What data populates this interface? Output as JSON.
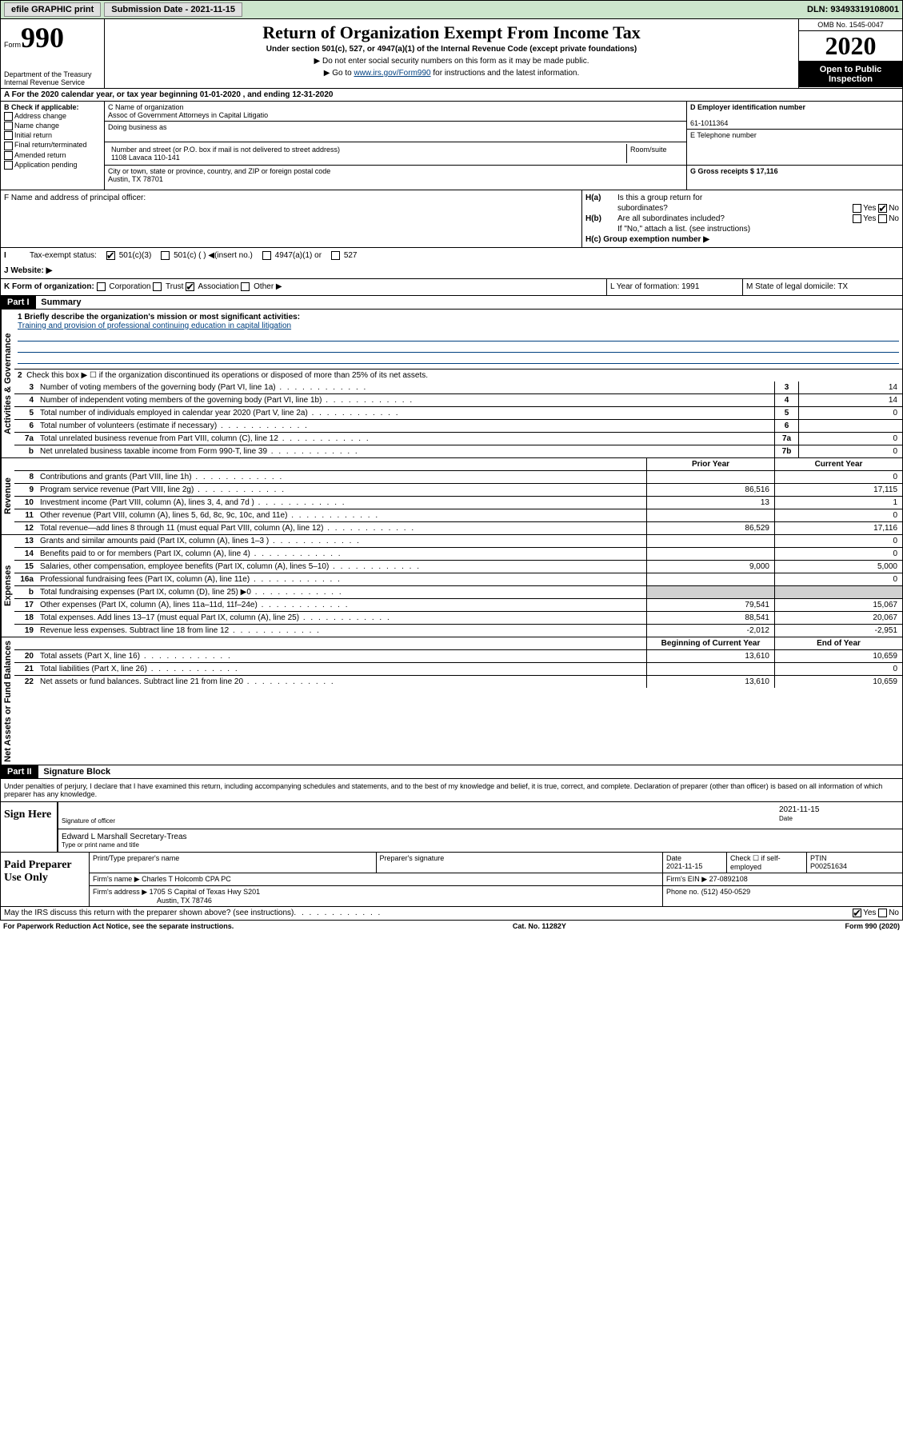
{
  "topbar": {
    "efile": "efile GRAPHIC print",
    "submission_label": "Submission Date - 2021-11-15",
    "dln": "DLN: 93493319108001"
  },
  "header": {
    "form_prefix": "Form",
    "form_number": "990",
    "dept": "Department of the Treasury",
    "irs": "Internal Revenue Service",
    "title": "Return of Organization Exempt From Income Tax",
    "subtitle": "Under section 501(c), 527, or 4947(a)(1) of the Internal Revenue Code (except private foundations)",
    "line1": "▶ Do not enter social security numbers on this form as it may be made public.",
    "line2_pre": "▶ Go to ",
    "line2_link": "www.irs.gov/Form990",
    "line2_post": " for instructions and the latest information.",
    "omb": "OMB No. 1545-0047",
    "year": "2020",
    "open_public": "Open to Public Inspection"
  },
  "row_a": "A For the 2020 calendar year, or tax year beginning 01-01-2020   , and ending 12-31-2020",
  "section_b": {
    "label": "B Check if applicable:",
    "opts": [
      "Address change",
      "Name change",
      "Initial return",
      "Final return/terminated",
      "Amended return",
      "Application pending"
    ]
  },
  "section_c": {
    "name_label": "C Name of organization",
    "name": "Assoc of Government Attorneys in Capital Litigatio",
    "dba_label": "Doing business as",
    "addr_label": "Number and street (or P.O. box if mail is not delivered to street address)",
    "room_label": "Room/suite",
    "addr": "1108 Lavaca 110-141",
    "city_label": "City or town, state or province, country, and ZIP or foreign postal code",
    "city": "Austin, TX  78701"
  },
  "section_d": {
    "ein_label": "D Employer identification number",
    "ein": "61-1011364",
    "phone_label": "E Telephone number",
    "gross_label": "G Gross receipts $ 17,116"
  },
  "section_f": {
    "label": "F  Name and address of principal officer:"
  },
  "section_h": {
    "ha": "H(a)  Is this a group return for subordinates?",
    "hb": "H(b)  Are all subordinates included?",
    "hb_note": "If \"No,\" attach a list. (see instructions)",
    "hc": "H(c)  Group exemption number ▶",
    "yes": "Yes",
    "no": "No"
  },
  "row_i": {
    "label": "Tax-exempt status:",
    "opt1": "501(c)(3)",
    "opt2": "501(c) (  ) ◀(insert no.)",
    "opt3": "4947(a)(1) or",
    "opt4": "527"
  },
  "row_j": {
    "label": "J    Website: ▶"
  },
  "row_k": {
    "k": "K Form of organization:",
    "k_opts": [
      "Corporation",
      "Trust",
      "Association",
      "Other ▶"
    ],
    "l_label": "L Year of formation: 1991",
    "m_label": "M State of legal domicile: TX"
  },
  "part1": {
    "header": "Part I",
    "title": "Summary",
    "side_gov": "Activities & Governance",
    "side_rev": "Revenue",
    "side_exp": "Expenses",
    "side_net": "Net Assets or Fund Balances",
    "line1_label": "1  Briefly describe the organization's mission or most significant activities:",
    "line1_text": "Training and provision of professional continuing education in capital litigation",
    "line2": "Check this box ▶ ☐  if the organization discontinued its operations or disposed of more than 25% of its net assets.",
    "lines": [
      {
        "n": "3",
        "t": "Number of voting members of the governing body (Part VI, line 1a)",
        "c": "3",
        "v": "14"
      },
      {
        "n": "4",
        "t": "Number of independent voting members of the governing body (Part VI, line 1b)",
        "c": "4",
        "v": "14"
      },
      {
        "n": "5",
        "t": "Total number of individuals employed in calendar year 2020 (Part V, line 2a)",
        "c": "5",
        "v": "0"
      },
      {
        "n": "6",
        "t": "Total number of volunteers (estimate if necessary)",
        "c": "6",
        "v": ""
      },
      {
        "n": "7a",
        "t": "Total unrelated business revenue from Part VIII, column (C), line 12",
        "c": "7a",
        "v": "0"
      },
      {
        "n": "b",
        "t": "Net unrelated business taxable income from Form 990-T, line 39",
        "c": "7b",
        "v": "0"
      }
    ],
    "prior_year": "Prior Year",
    "current_year": "Current Year",
    "rev_lines": [
      {
        "n": "8",
        "t": "Contributions and grants (Part VIII, line 1h)",
        "p": "",
        "c": "0"
      },
      {
        "n": "9",
        "t": "Program service revenue (Part VIII, line 2g)",
        "p": "86,516",
        "c": "17,115"
      },
      {
        "n": "10",
        "t": "Investment income (Part VIII, column (A), lines 3, 4, and 7d )",
        "p": "13",
        "c": "1"
      },
      {
        "n": "11",
        "t": "Other revenue (Part VIII, column (A), lines 5, 6d, 8c, 9c, 10c, and 11e)",
        "p": "",
        "c": "0"
      },
      {
        "n": "12",
        "t": "Total revenue—add lines 8 through 11 (must equal Part VIII, column (A), line 12)",
        "p": "86,529",
        "c": "17,116"
      }
    ],
    "exp_lines": [
      {
        "n": "13",
        "t": "Grants and similar amounts paid (Part IX, column (A), lines 1–3 )",
        "p": "",
        "c": "0"
      },
      {
        "n": "14",
        "t": "Benefits paid to or for members (Part IX, column (A), line 4)",
        "p": "",
        "c": "0"
      },
      {
        "n": "15",
        "t": "Salaries, other compensation, employee benefits (Part IX, column (A), lines 5–10)",
        "p": "9,000",
        "c": "5,000"
      },
      {
        "n": "16a",
        "t": "Professional fundraising fees (Part IX, column (A), line 11e)",
        "p": "",
        "c": "0"
      },
      {
        "n": "b",
        "t": "Total fundraising expenses (Part IX, column (D), line 25) ▶0",
        "p": "GRAY",
        "c": "GRAY"
      },
      {
        "n": "17",
        "t": "Other expenses (Part IX, column (A), lines 11a–11d, 11f–24e)",
        "p": "79,541",
        "c": "15,067"
      },
      {
        "n": "18",
        "t": "Total expenses. Add lines 13–17 (must equal Part IX, column (A), line 25)",
        "p": "88,541",
        "c": "20,067"
      },
      {
        "n": "19",
        "t": "Revenue less expenses. Subtract line 18 from line 12",
        "p": "-2,012",
        "c": "-2,951"
      }
    ],
    "begin_year": "Beginning of Current Year",
    "end_year": "End of Year",
    "net_lines": [
      {
        "n": "20",
        "t": "Total assets (Part X, line 16)",
        "p": "13,610",
        "c": "10,659"
      },
      {
        "n": "21",
        "t": "Total liabilities (Part X, line 26)",
        "p": "",
        "c": "0"
      },
      {
        "n": "22",
        "t": "Net assets or fund balances. Subtract line 21 from line 20",
        "p": "13,610",
        "c": "10,659"
      }
    ]
  },
  "part2": {
    "header": "Part II",
    "title": "Signature Block",
    "penalty": "Under penalties of perjury, I declare that I have examined this return, including accompanying schedules and statements, and to the best of my knowledge and belief, it is true, correct, and complete. Declaration of preparer (other than officer) is based on all information of which preparer has any knowledge.",
    "sign_here": "Sign Here",
    "sig_officer": "Signature of officer",
    "sig_date": "2021-11-15",
    "date_label": "Date",
    "officer_name": "Edward L Marshall Secretary-Treas",
    "type_label": "Type or print name and title",
    "paid_prep": "Paid Preparer Use Only",
    "prep_name_label": "Print/Type preparer's name",
    "prep_sig_label": "Preparer's signature",
    "prep_date": "2021-11-15",
    "check_label": "Check ☐ if self-employed",
    "ptin_label": "PTIN",
    "ptin": "P00251634",
    "firm_name_label": "Firm's name      ▶",
    "firm_name": "Charles T Holcomb CPA PC",
    "firm_ein_label": "Firm's EIN ▶",
    "firm_ein": "27-0892108",
    "firm_addr_label": "Firm's address ▶",
    "firm_addr1": "1705 S Capital of Texas Hwy S201",
    "firm_addr2": "Austin, TX  78746",
    "phone_label": "Phone no.",
    "phone": "(512) 450-0529",
    "discuss": "May the IRS discuss this return with the preparer shown above? (see instructions)",
    "yes": "Yes",
    "no": "No"
  },
  "footer": {
    "paperwork": "For Paperwork Reduction Act Notice, see the separate instructions.",
    "cat": "Cat. No. 11282Y",
    "form": "Form 990 (2020)"
  }
}
